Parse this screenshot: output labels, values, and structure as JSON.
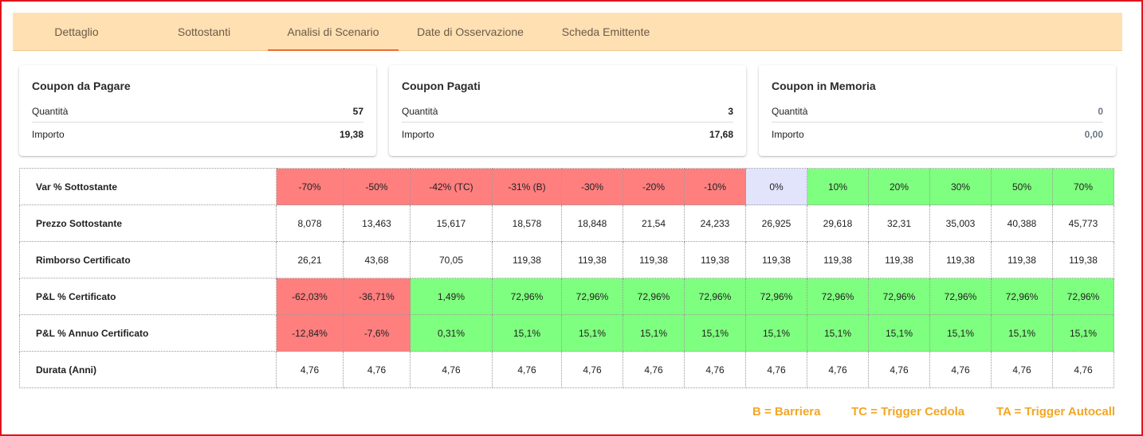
{
  "tabs": [
    {
      "label": "Dettaglio",
      "active": false
    },
    {
      "label": "Sottostanti",
      "active": false
    },
    {
      "label": "Analisi di Scenario",
      "active": true
    },
    {
      "label": "Date di Osservazione",
      "active": false
    },
    {
      "label": "Scheda Emittente",
      "active": false
    }
  ],
  "cards": [
    {
      "title": "Coupon da Pagare",
      "rows": [
        {
          "label": "Quantità",
          "value": "57"
        },
        {
          "label": "Importo",
          "value": "19,38"
        }
      ]
    },
    {
      "title": "Coupon Pagati",
      "rows": [
        {
          "label": "Quantità",
          "value": "3"
        },
        {
          "label": "Importo",
          "value": "17,68"
        }
      ]
    },
    {
      "title": "Coupon in Memoria",
      "rows": [
        {
          "label": "Quantità",
          "value": "0"
        },
        {
          "label": "Importo",
          "value": "0,00"
        }
      ]
    }
  ],
  "scenario": {
    "rows": [
      {
        "label": "Var % Sottostante",
        "cells": [
          "-70%",
          "-50%",
          "-42% (TC)",
          "-31% (B)",
          "-30%",
          "-20%",
          "-10%",
          "0%",
          "10%",
          "20%",
          "30%",
          "50%",
          "70%"
        ],
        "colors": [
          "red",
          "red",
          "red",
          "red",
          "red",
          "red",
          "red",
          "blue",
          "green",
          "green",
          "green",
          "green",
          "green"
        ]
      },
      {
        "label": "Prezzo Sottostante",
        "cells": [
          "8,078",
          "13,463",
          "15,617",
          "18,578",
          "18,848",
          "21,54",
          "24,233",
          "26,925",
          "29,618",
          "32,31",
          "35,003",
          "40,388",
          "45,773"
        ],
        "colors": [
          "",
          "",
          "",
          "",
          "",
          "",
          "",
          "",
          "",
          "",
          "",
          "",
          ""
        ]
      },
      {
        "label": "Rimborso Certificato",
        "cells": [
          "26,21",
          "43,68",
          "70,05",
          "119,38",
          "119,38",
          "119,38",
          "119,38",
          "119,38",
          "119,38",
          "119,38",
          "119,38",
          "119,38",
          "119,38"
        ],
        "colors": [
          "",
          "",
          "",
          "",
          "",
          "",
          "",
          "",
          "",
          "",
          "",
          "",
          ""
        ]
      },
      {
        "label": "P&L % Certificato",
        "cells": [
          "-62,03%",
          "-36,71%",
          "1,49%",
          "72,96%",
          "72,96%",
          "72,96%",
          "72,96%",
          "72,96%",
          "72,96%",
          "72,96%",
          "72,96%",
          "72,96%",
          "72,96%"
        ],
        "colors": [
          "red",
          "red",
          "green",
          "green",
          "green",
          "green",
          "green",
          "green",
          "green",
          "green",
          "green",
          "green",
          "green"
        ]
      },
      {
        "label": "P&L % Annuo Certificato",
        "cells": [
          "-12,84%",
          "-7,6%",
          "0,31%",
          "15,1%",
          "15,1%",
          "15,1%",
          "15,1%",
          "15,1%",
          "15,1%",
          "15,1%",
          "15,1%",
          "15,1%",
          "15,1%"
        ],
        "colors": [
          "red",
          "red",
          "green",
          "green",
          "green",
          "green",
          "green",
          "green",
          "green",
          "green",
          "green",
          "green",
          "green"
        ]
      },
      {
        "label": "Durata (Anni)",
        "cells": [
          "4,76",
          "4,76",
          "4,76",
          "4,76",
          "4,76",
          "4,76",
          "4,76",
          "4,76",
          "4,76",
          "4,76",
          "4,76",
          "4,76",
          "4,76"
        ],
        "colors": [
          "",
          "",
          "",
          "",
          "",
          "",
          "",
          "",
          "",
          "",
          "",
          "",
          ""
        ]
      }
    ]
  },
  "legend": {
    "barriera": "B = Barriera",
    "trigger_cedola": "TC = Trigger Cedola",
    "trigger_autocall": "TA = Trigger Autocall"
  },
  "colors": {
    "tab_bar": "#ffe0b2",
    "tab_indicator": "#f06a30",
    "negative": "#ff7f7f",
    "positive": "#7fff7f",
    "neutral": "#e2e4fc",
    "legend_text": "#f5a623"
  }
}
